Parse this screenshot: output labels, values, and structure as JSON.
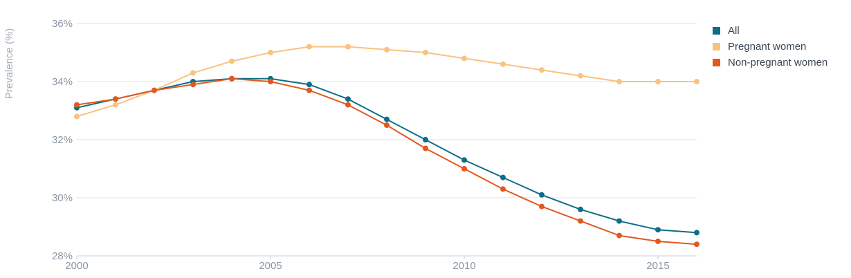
{
  "chart_data": {
    "type": "line",
    "title": "",
    "xlabel": "",
    "ylabel": "Prevalence (%)",
    "x": [
      2000,
      2001,
      2002,
      2003,
      2004,
      2005,
      2006,
      2007,
      2008,
      2009,
      2010,
      2011,
      2012,
      2013,
      2014,
      2015,
      2016
    ],
    "xlim": [
      2000,
      2016
    ],
    "ylim": [
      28,
      36
    ],
    "x_ticks": [
      "2000",
      "2005",
      "2010",
      "2015"
    ],
    "y_ticks": [
      "28%",
      "30%",
      "32%",
      "34%",
      "36%"
    ],
    "grid": "horizontal",
    "legend_position": "right",
    "series": [
      {
        "name": "All",
        "color": "#0e6e86",
        "values": [
          33.1,
          33.4,
          33.7,
          34.0,
          34.1,
          34.1,
          33.9,
          33.4,
          32.7,
          32.0,
          31.3,
          30.7,
          30.1,
          29.6,
          29.2,
          28.9,
          28.8
        ]
      },
      {
        "name": "Pregnant women",
        "color": "#f9c27f",
        "values": [
          32.8,
          33.2,
          33.7,
          34.3,
          34.7,
          35.0,
          35.2,
          35.2,
          35.1,
          35.0,
          34.8,
          34.6,
          34.4,
          34.2,
          34.0,
          34.0,
          34.0
        ]
      },
      {
        "name": "Non-pregnant women",
        "color": "#e3581f",
        "values": [
          33.2,
          33.4,
          33.7,
          33.9,
          34.1,
          34.0,
          33.7,
          33.2,
          32.5,
          31.7,
          31.0,
          30.3,
          29.7,
          29.2,
          28.7,
          28.5,
          28.4
        ]
      }
    ]
  }
}
